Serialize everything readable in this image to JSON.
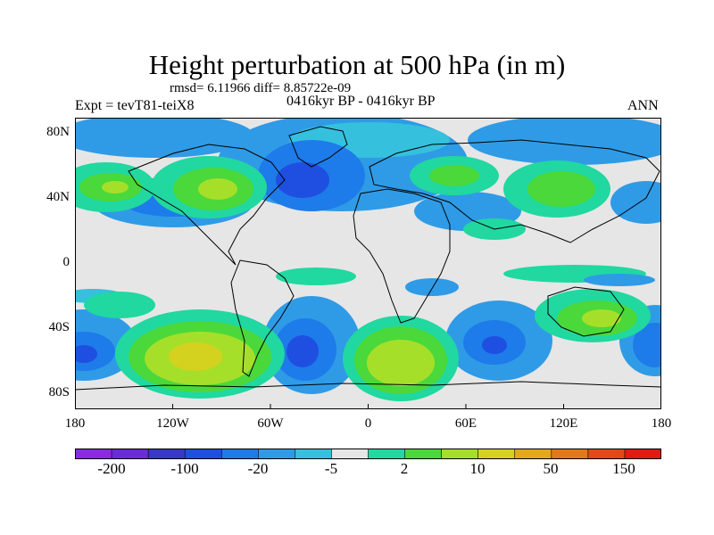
{
  "title": "Height perturbation at 500 hPa (in m)",
  "stats": "rmsd= 6.11966 diff= 8.85722e-09",
  "experiment": "Expt = tevT81-teiX8",
  "case": "0416kyr BP - 0416kyr BP",
  "season": "ANN",
  "map": {
    "lat_ticks": [
      "80N",
      "40N",
      "0",
      "40S",
      "80S"
    ],
    "lon_ticks": [
      "180",
      "120W",
      "60W",
      "0",
      "60E",
      "120E",
      "180"
    ]
  },
  "colorbar": {
    "labels": [
      "-200",
      "-100",
      "-20",
      "-5",
      "2",
      "10",
      "50",
      "150"
    ],
    "colors": [
      "#8a2be2",
      "#6a2bd8",
      "#3838c8",
      "#1f4fe0",
      "#1e7bea",
      "#2f9be6",
      "#35c0de",
      "#e6e6e6",
      "#20d8a0",
      "#4bd83a",
      "#a6df2a",
      "#d4d21e",
      "#e4a81a",
      "#e37818",
      "#e44816",
      "#e31a10"
    ]
  }
}
